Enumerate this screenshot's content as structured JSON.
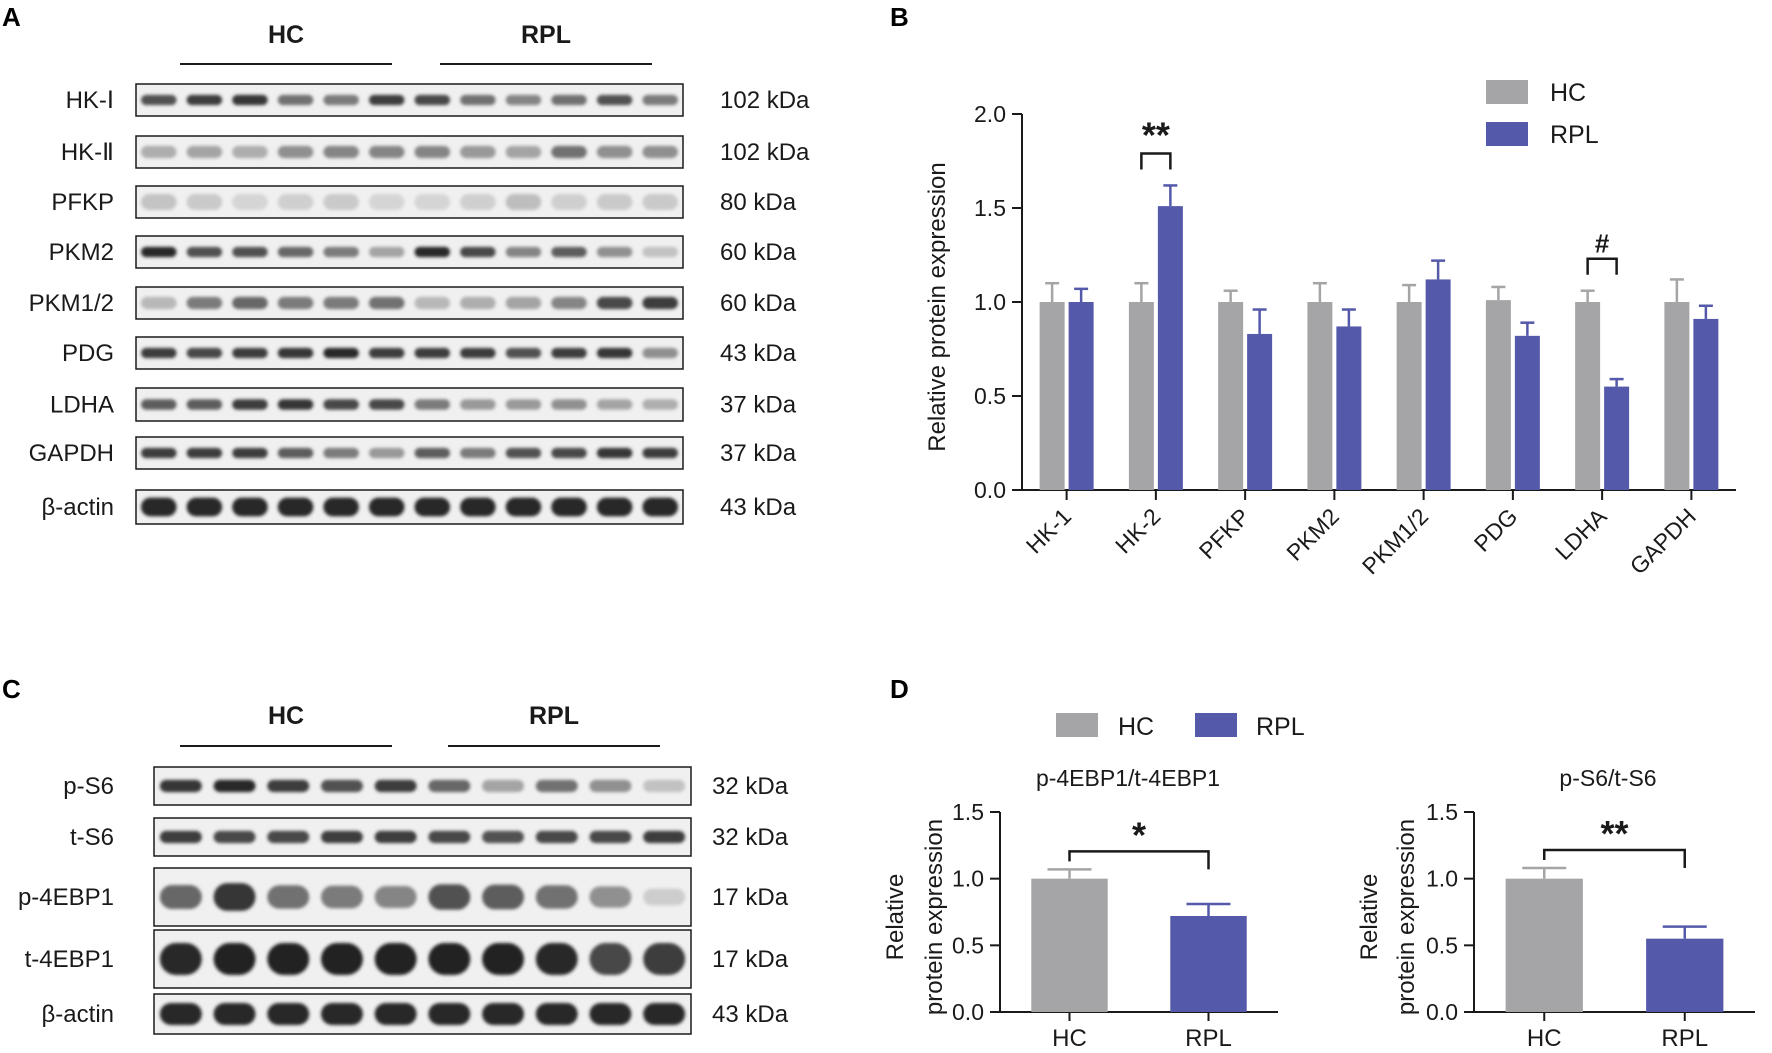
{
  "panel_a": {
    "letter": "A",
    "groups": [
      "HC",
      "RPL"
    ],
    "blots": [
      {
        "label": "HK-Ⅰ",
        "size": "102 kDa",
        "intensity": [
          0.75,
          0.85,
          0.9,
          0.6,
          0.55,
          0.85,
          0.8,
          0.6,
          0.5,
          0.6,
          0.75,
          0.55
        ],
        "style": "band"
      },
      {
        "label": "HK-Ⅱ",
        "size": "102 kDa",
        "intensity": [
          0.3,
          0.35,
          0.3,
          0.45,
          0.5,
          0.5,
          0.5,
          0.4,
          0.35,
          0.6,
          0.45,
          0.45
        ],
        "style": "faint"
      },
      {
        "label": "PFKP",
        "size": "80 kDa",
        "intensity": [
          0.35,
          0.3,
          0.2,
          0.25,
          0.3,
          0.2,
          0.2,
          0.25,
          0.4,
          0.25,
          0.3,
          0.3
        ],
        "style": "smear"
      },
      {
        "label": "PKM2",
        "size": "60 kDa",
        "intensity": [
          0.95,
          0.75,
          0.75,
          0.65,
          0.55,
          0.35,
          0.95,
          0.8,
          0.5,
          0.7,
          0.45,
          0.2
        ],
        "style": "band"
      },
      {
        "label": "PKM1/2",
        "size": "60 kDa",
        "intensity": [
          0.25,
          0.55,
          0.65,
          0.55,
          0.55,
          0.6,
          0.25,
          0.3,
          0.35,
          0.5,
          0.8,
          0.85
        ],
        "style": "faint"
      },
      {
        "label": "PDG",
        "size": "43 kDa",
        "intensity": [
          0.85,
          0.8,
          0.85,
          0.9,
          0.95,
          0.85,
          0.85,
          0.85,
          0.75,
          0.85,
          0.9,
          0.45
        ],
        "style": "band"
      },
      {
        "label": "LDHA",
        "size": "37 kDa",
        "intensity": [
          0.7,
          0.7,
          0.85,
          0.9,
          0.8,
          0.8,
          0.55,
          0.4,
          0.4,
          0.45,
          0.35,
          0.3
        ],
        "style": "band"
      },
      {
        "label": "GAPDH",
        "size": "37 kDa",
        "intensity": [
          0.85,
          0.85,
          0.85,
          0.7,
          0.55,
          0.4,
          0.7,
          0.55,
          0.75,
          0.8,
          0.9,
          0.85
        ],
        "style": "band"
      },
      {
        "label": "β-actin",
        "size": "43 kDa",
        "intensity": [
          0.95,
          0.95,
          0.95,
          0.95,
          0.95,
          0.95,
          0.95,
          0.95,
          0.95,
          0.95,
          0.95,
          0.95
        ],
        "style": "thick"
      }
    ]
  },
  "panel_c": {
    "letter": "C",
    "groups": [
      "HC",
      "RPL"
    ],
    "blots": [
      {
        "label": "p-S6",
        "size": "32 kDa",
        "intensity": [
          0.9,
          0.95,
          0.85,
          0.75,
          0.85,
          0.65,
          0.35,
          0.6,
          0.45,
          0.2
        ],
        "style": "band"
      },
      {
        "label": "t-S6",
        "size": "32 kDa",
        "intensity": [
          0.85,
          0.8,
          0.8,
          0.85,
          0.85,
          0.8,
          0.75,
          0.8,
          0.8,
          0.85
        ],
        "style": "band"
      },
      {
        "label": "p-4EBP1",
        "size": "17 kDa",
        "intensity": [
          0.65,
          0.9,
          0.6,
          0.55,
          0.5,
          0.75,
          0.7,
          0.6,
          0.45,
          0.15
        ],
        "style": "blob"
      },
      {
        "label": "t-4EBP1",
        "size": "17 kDa",
        "intensity": [
          0.95,
          1.0,
          1.0,
          1.0,
          1.0,
          1.0,
          1.0,
          0.95,
          0.8,
          0.85
        ],
        "style": "thick"
      },
      {
        "label": "β-actin",
        "size": "43 kDa",
        "intensity": [
          0.95,
          0.95,
          0.95,
          0.95,
          0.95,
          0.95,
          0.95,
          0.95,
          0.95,
          0.95
        ],
        "style": "thick"
      }
    ]
  },
  "colors": {
    "hc": "#a5a5a7",
    "rpl": "#5459aa",
    "axis": "#1a1a1a"
  },
  "chart_data": [
    {
      "panel": "B",
      "type": "bar",
      "ylabel": "Relative protein expression",
      "ylim": [
        0,
        2.0
      ],
      "yticks": [
        "0.0",
        "0.5",
        "1.0",
        "1.5",
        "2.0"
      ],
      "categories": [
        "HK-1",
        "HK-2",
        "PFKP",
        "PKM2",
        "PKM1/2",
        "PDG",
        "LDHA",
        "GAPDH"
      ],
      "series": [
        {
          "name": "HC",
          "values": [
            1.0,
            1.0,
            1.0,
            1.0,
            1.0,
            1.01,
            1.0,
            1.0
          ],
          "errors": [
            0.1,
            0.1,
            0.06,
            0.1,
            0.09,
            0.07,
            0.06,
            0.12
          ]
        },
        {
          "name": "RPL",
          "values": [
            1.0,
            1.51,
            0.83,
            0.87,
            1.12,
            0.82,
            0.55,
            0.91
          ],
          "errors": [
            0.07,
            0.11,
            0.13,
            0.09,
            0.1,
            0.07,
            0.04,
            0.07
          ]
        }
      ],
      "legend": "top-right",
      "annotations": [
        {
          "category": "HK-2",
          "text": "**"
        },
        {
          "category": "LDHA",
          "text": "#"
        }
      ]
    },
    {
      "panel": "D",
      "type": "bar",
      "title": "p-4EBP1/t-4EBP1",
      "ylabel": "Relative protein expression",
      "ylabel_lines": [
        "Relative",
        "protein expression"
      ],
      "ylim": [
        0,
        1.5
      ],
      "yticks": [
        "0.0",
        "0.5",
        "1.0",
        "1.5"
      ],
      "categories": [
        "HC",
        "RPL"
      ],
      "values": [
        1.0,
        0.72
      ],
      "errors": [
        0.07,
        0.09
      ],
      "significance": "*"
    },
    {
      "panel": "D",
      "type": "bar",
      "title": "p-S6/t-S6",
      "ylabel": "Relative protein expression",
      "ylabel_lines": [
        "Relative",
        "protein expression"
      ],
      "ylim": [
        0,
        1.5
      ],
      "yticks": [
        "0.0",
        "0.5",
        "1.0",
        "1.5"
      ],
      "categories": [
        "HC",
        "RPL"
      ],
      "values": [
        1.0,
        0.55
      ],
      "errors": [
        0.08,
        0.09
      ],
      "significance": "**"
    }
  ],
  "panel_b": {
    "letter": "B"
  },
  "panel_d": {
    "letter": "D",
    "legend": [
      "HC",
      "RPL"
    ]
  }
}
